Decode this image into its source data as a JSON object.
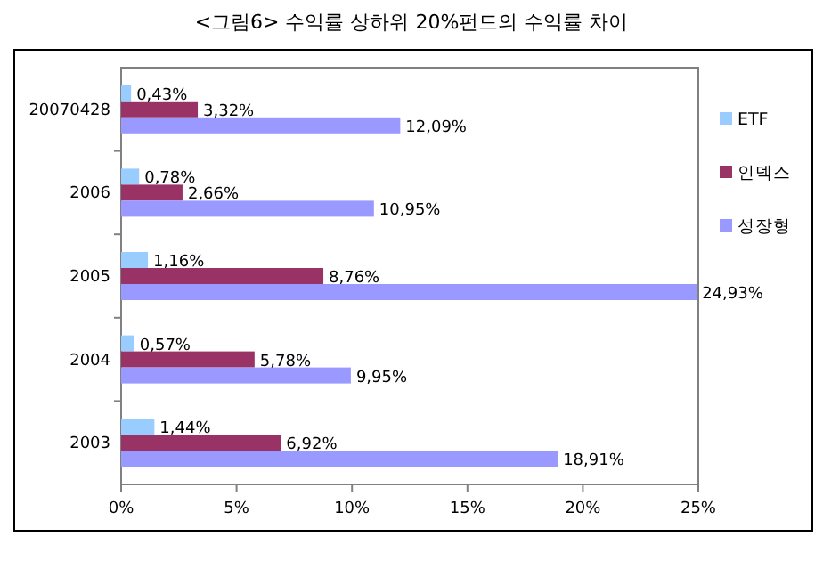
{
  "chart_data": {
    "type": "bar",
    "orientation": "horizontal",
    "title": "<그림6> 수익률 상하위 20%펀드의 수익률 차이",
    "categories": [
      "20070428",
      "2006",
      "2005",
      "2004",
      "2003"
    ],
    "series": [
      {
        "name": "ETF",
        "color": "#99ccff",
        "values": [
          0.43,
          0.78,
          1.16,
          0.57,
          1.44
        ],
        "value_labels": [
          "0,43%",
          "0,78%",
          "1,16%",
          "0,57%",
          "1,44%"
        ]
      },
      {
        "name": "인덱스",
        "color": "#993366",
        "values": [
          3.32,
          2.66,
          8.76,
          5.78,
          6.92
        ],
        "value_labels": [
          "3,32%",
          "2,66%",
          "8,76%",
          "5,78%",
          "6,92%"
        ]
      },
      {
        "name": "성장형",
        "color": "#9999ff",
        "values": [
          12.09,
          10.95,
          24.93,
          9.95,
          18.91
        ],
        "value_labels": [
          "12,09%",
          "10,95%",
          "24,93%",
          "9,95%",
          "18,91%"
        ]
      }
    ],
    "xlim": [
      0,
      25
    ],
    "xticks": [
      {
        "value": 0,
        "label": "0%"
      },
      {
        "value": 5,
        "label": "5%"
      },
      {
        "value": 10,
        "label": "10%"
      },
      {
        "value": 15,
        "label": "15%"
      },
      {
        "value": 20,
        "label": "20%"
      },
      {
        "value": 25,
        "label": "25%"
      }
    ],
    "grid": false,
    "legend": "right"
  }
}
